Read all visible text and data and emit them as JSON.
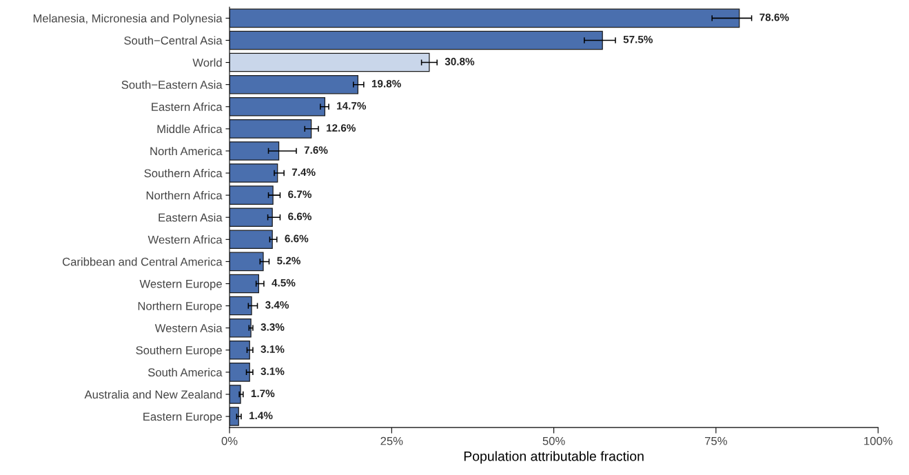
{
  "chart_data": {
    "type": "bar",
    "orientation": "horizontal",
    "xlabel": "Population attributable fraction",
    "categories": [
      "Melanesia, Micronesia and Polynesia",
      "South−Central Asia",
      "World",
      "South−Eastern Asia",
      "Eastern Africa",
      "Middle Africa",
      "North America",
      "Southern Africa",
      "Northern Africa",
      "Eastern Asia",
      "Western Africa",
      "Caribbean and Central America",
      "Western Europe",
      "Northern Europe",
      "Western Asia",
      "Southern Europe",
      "South America",
      "Australia and New Zealand",
      "Eastern Europe"
    ],
    "values": [
      78.6,
      57.5,
      30.8,
      19.8,
      14.7,
      12.6,
      7.6,
      7.4,
      6.7,
      6.6,
      6.6,
      5.2,
      4.5,
      3.4,
      3.3,
      3.1,
      3.1,
      1.7,
      1.4
    ],
    "value_labels": [
      "78.6%",
      "57.5%",
      "30.8%",
      "19.8%",
      "14.7%",
      "12.6%",
      "7.6%",
      "7.4%",
      "6.7%",
      "6.6%",
      "6.6%",
      "5.2%",
      "4.5%",
      "3.4%",
      "3.3%",
      "3.1%",
      "3.1%",
      "1.7%",
      "1.4%"
    ],
    "errors": [
      [
        74.4,
        80.5
      ],
      [
        54.7,
        59.5
      ],
      [
        29.6,
        32.0
      ],
      [
        19.1,
        20.7
      ],
      [
        14.0,
        15.3
      ],
      [
        11.6,
        13.7
      ],
      [
        6.0,
        10.3
      ],
      [
        6.9,
        8.4
      ],
      [
        6.0,
        7.8
      ],
      [
        5.9,
        7.8
      ],
      [
        6.2,
        7.3
      ],
      [
        4.7,
        6.1
      ],
      [
        4.1,
        5.3
      ],
      [
        2.9,
        4.3
      ],
      [
        3.0,
        3.6
      ],
      [
        2.7,
        3.6
      ],
      [
        2.6,
        3.6
      ],
      [
        1.5,
        2.1
      ],
      [
        1.1,
        1.8
      ]
    ],
    "colors": [
      "#4a6fae",
      "#4a6fae",
      "#c9d6ea",
      "#4a6fae",
      "#4a6fae",
      "#4a6fae",
      "#4a6fae",
      "#4a6fae",
      "#4a6fae",
      "#4a6fae",
      "#4a6fae",
      "#4a6fae",
      "#4a6fae",
      "#4a6fae",
      "#4a6fae",
      "#4a6fae",
      "#4a6fae",
      "#4a6fae",
      "#4a6fae"
    ],
    "xlim": [
      0,
      100
    ],
    "xticks": [
      {
        "value": 0,
        "label": "0%"
      },
      {
        "value": 25,
        "label": "25%"
      },
      {
        "value": 50,
        "label": "50%"
      },
      {
        "value": 75,
        "label": "75%"
      },
      {
        "value": 100,
        "label": "100%"
      }
    ],
    "grid": false,
    "legend": false
  }
}
